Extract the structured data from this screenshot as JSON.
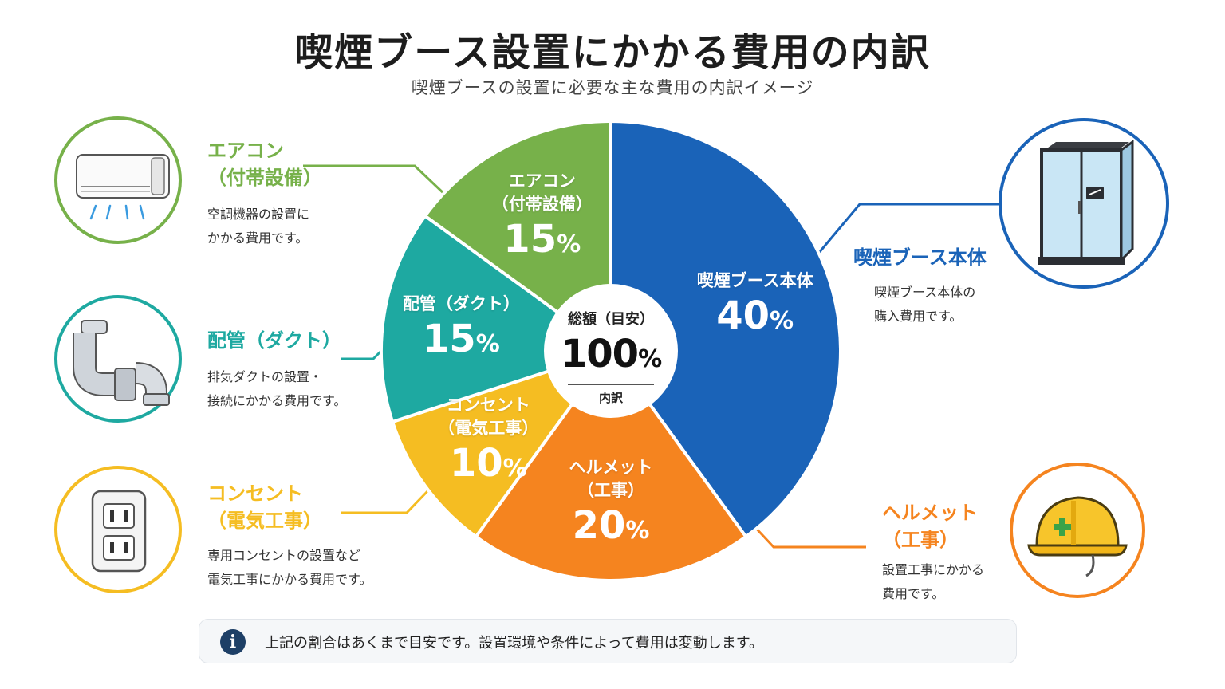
{
  "header": {
    "title": "喫煙ブース設置にかかる費用の内訳",
    "subtitle": "喫煙ブースの設置に必要な主な費用の内訳イメージ"
  },
  "chart_data": {
    "type": "pie",
    "title": "喫煙ブース設置にかかる費用の内訳",
    "subtitle": "喫煙ブースの設置に必要な主な費用の内訳イメージ",
    "unit": "%",
    "slices": [
      {
        "label_lines": [
          "喫煙ブース本体"
        ],
        "value": 40,
        "value_text": "40",
        "color": "#1a63b8"
      },
      {
        "label_lines": [
          "ヘルメット",
          "（工事）"
        ],
        "value": 20,
        "value_text": "20",
        "color": "#f5841f"
      },
      {
        "label_lines": [
          "コンセント",
          "（電気工事）"
        ],
        "value": 10,
        "value_text": "10",
        "color": "#f5bd22"
      },
      {
        "label_lines": [
          "配管（ダクト）"
        ],
        "value": 15,
        "value_text": "15",
        "color": "#1ea9a1"
      },
      {
        "label_lines": [
          "エアコン",
          "（付帯設備）"
        ],
        "value": 15,
        "value_text": "15",
        "color": "#77b14a"
      }
    ],
    "center": {
      "title": "総額（目安）",
      "value": "100",
      "unit": "%",
      "subtitle": "内訳"
    }
  },
  "callouts": {
    "aircon": {
      "label_lines": [
        "エアコン",
        "（付帯設備）"
      ],
      "desc_lines": [
        "空調機器の設置に",
        "かかる費用です。"
      ],
      "color": "#77b14a",
      "icon": "air-conditioner-icon"
    },
    "duct": {
      "label_lines": [
        "配管（ダクト）"
      ],
      "desc_lines": [
        "排気ダクトの設置・",
        "接続にかかる費用です。"
      ],
      "color": "#1ea9a1",
      "icon": "duct-pipe-icon"
    },
    "outlet": {
      "label_lines": [
        "コンセント",
        "（電気工事）"
      ],
      "desc_lines": [
        "専用コンセントの設置など",
        "電気工事にかかる費用です。"
      ],
      "color": "#f5bd22",
      "icon": "power-outlet-icon"
    },
    "booth": {
      "label_lines": [
        "喫煙ブース本体"
      ],
      "desc_lines": [
        "喫煙ブース本体の",
        "購入費用です。"
      ],
      "color": "#1a63b8",
      "icon": "smoking-booth-icon"
    },
    "helmet": {
      "label_lines": [
        "ヘルメット",
        "（工事）"
      ],
      "desc_lines": [
        "設置工事にかかる",
        "費用です。"
      ],
      "color": "#f5841f",
      "icon": "hard-hat-icon"
    }
  },
  "note": {
    "icon": "info-icon",
    "icon_text": "i",
    "text": "上記の割合はあくまで目安です。設置環境や条件によって費用は変動します。"
  }
}
